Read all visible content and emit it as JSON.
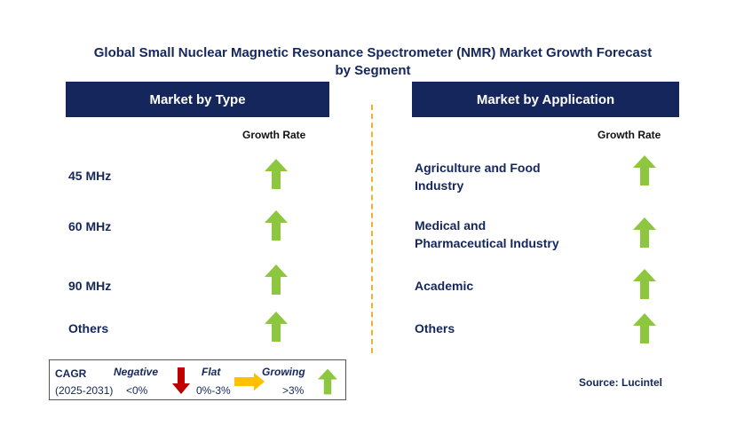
{
  "title": "Global Small Nuclear Magnetic Resonance Spectrometer (NMR) Market Growth Forecast by Segment",
  "colors": {
    "navy": "#14265c",
    "up_green": "#8dc63f",
    "down_red": "#c00000",
    "flat_yellow": "#ffc000",
    "divider": "#f0b030"
  },
  "left_panel": {
    "header": "Market by Type",
    "growth_rate_label": "Growth Rate",
    "rows": [
      {
        "label": "45 MHz",
        "trend": "growing"
      },
      {
        "label": "60 MHz",
        "trend": "growing"
      },
      {
        "label": "90 MHz",
        "trend": "growing"
      },
      {
        "label": "Others",
        "trend": "growing"
      }
    ]
  },
  "right_panel": {
    "header": "Market by Application",
    "growth_rate_label": "Growth Rate",
    "rows": [
      {
        "label_line1": "Agriculture and Food",
        "label_line2": "Industry",
        "trend": "growing"
      },
      {
        "label_line1": "Medical and",
        "label_line2": "Pharmaceutical Industry",
        "trend": "growing"
      },
      {
        "label_line1": "Academic",
        "label_line2": "",
        "trend": "growing"
      },
      {
        "label_line1": "Others",
        "label_line2": "",
        "trend": "growing"
      }
    ]
  },
  "legend": {
    "cagr": "CAGR",
    "period": "(2025-2031)",
    "negative": "Negative",
    "negative_range": "<0%",
    "flat": "Flat",
    "flat_range": "0%-3%",
    "growing": "Growing",
    "growing_range": ">3%"
  },
  "source": "Source: Lucintel"
}
